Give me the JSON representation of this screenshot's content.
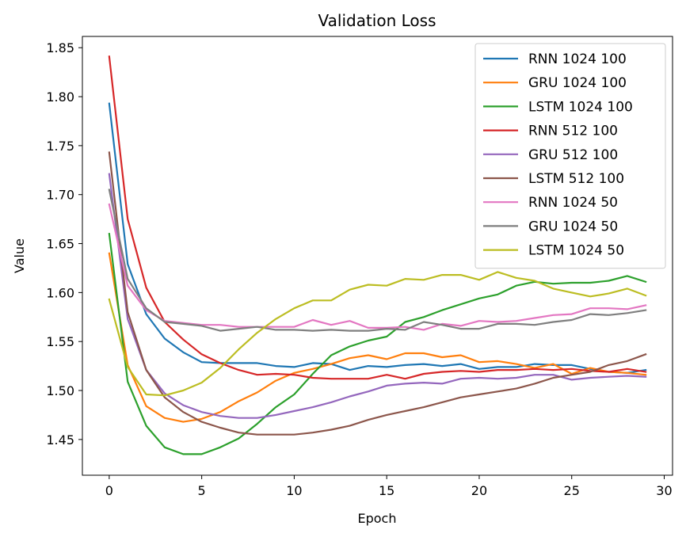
{
  "chart_data": {
    "type": "line",
    "title": "Validation Loss",
    "xlabel": "Epoch",
    "ylabel": "Value",
    "xlim": [
      -1.45,
      30.45
    ],
    "ylim": [
      1.4135,
      1.8615
    ],
    "xticks": [
      0,
      5,
      10,
      15,
      20,
      25,
      30
    ],
    "yticks": [
      1.45,
      1.5,
      1.55,
      1.6,
      1.65,
      1.7,
      1.75,
      1.8,
      1.85
    ],
    "ytick_labels": [
      "1.45",
      "1.50",
      "1.55",
      "1.60",
      "1.65",
      "1.70",
      "1.75",
      "1.80",
      "1.85"
    ],
    "legend_position": "top-right",
    "grid": false,
    "x": [
      0,
      1,
      2,
      3,
      4,
      5,
      6,
      7,
      8,
      9,
      10,
      11,
      12,
      13,
      14,
      15,
      16,
      17,
      18,
      19,
      20,
      21,
      22,
      23,
      24,
      25,
      26,
      27,
      28,
      29
    ],
    "series": [
      {
        "name": "RNN 1024 100",
        "color": "#1f77b4",
        "values": [
          1.793,
          1.629,
          1.578,
          1.553,
          1.539,
          1.529,
          1.528,
          1.528,
          1.528,
          1.525,
          1.524,
          1.528,
          1.527,
          1.521,
          1.525,
          1.524,
          1.526,
          1.527,
          1.525,
          1.527,
          1.522,
          1.524,
          1.524,
          1.527,
          1.526,
          1.526,
          1.522,
          1.519,
          1.518,
          1.521
        ]
      },
      {
        "name": "GRU 1024 100",
        "color": "#ff7f0e",
        "values": [
          1.64,
          1.526,
          1.484,
          1.472,
          1.468,
          1.471,
          1.478,
          1.489,
          1.498,
          1.51,
          1.518,
          1.522,
          1.527,
          1.533,
          1.536,
          1.532,
          1.538,
          1.538,
          1.534,
          1.536,
          1.529,
          1.53,
          1.527,
          1.523,
          1.527,
          1.517,
          1.523,
          1.519,
          1.518,
          1.516
        ]
      },
      {
        "name": "LSTM 1024 100",
        "color": "#2ca02c",
        "values": [
          1.66,
          1.509,
          1.464,
          1.442,
          1.435,
          1.435,
          1.442,
          1.451,
          1.466,
          1.483,
          1.496,
          1.517,
          1.536,
          1.545,
          1.551,
          1.555,
          1.57,
          1.575,
          1.582,
          1.588,
          1.594,
          1.598,
          1.607,
          1.611,
          1.609,
          1.61,
          1.61,
          1.612,
          1.617,
          1.611
        ]
      },
      {
        "name": "RNN 512 100",
        "color": "#d62728",
        "values": [
          1.841,
          1.675,
          1.605,
          1.57,
          1.552,
          1.537,
          1.528,
          1.521,
          1.516,
          1.517,
          1.516,
          1.513,
          1.512,
          1.512,
          1.512,
          1.516,
          1.512,
          1.517,
          1.519,
          1.52,
          1.519,
          1.521,
          1.521,
          1.522,
          1.521,
          1.522,
          1.52,
          1.519,
          1.522,
          1.519
        ]
      },
      {
        "name": "GRU 512 100",
        "color": "#9467bd",
        "values": [
          1.721,
          1.573,
          1.521,
          1.497,
          1.485,
          1.478,
          1.474,
          1.472,
          1.472,
          1.475,
          1.479,
          1.483,
          1.488,
          1.494,
          1.499,
          1.505,
          1.507,
          1.508,
          1.507,
          1.512,
          1.513,
          1.512,
          1.513,
          1.516,
          1.516,
          1.511,
          1.513,
          1.514,
          1.515,
          1.514
        ]
      },
      {
        "name": "LSTM 512 100",
        "color": "#8c564b",
        "values": [
          1.743,
          1.58,
          1.521,
          1.493,
          1.478,
          1.468,
          1.462,
          1.457,
          1.455,
          1.455,
          1.455,
          1.457,
          1.46,
          1.464,
          1.47,
          1.475,
          1.479,
          1.483,
          1.488,
          1.493,
          1.496,
          1.499,
          1.502,
          1.507,
          1.513,
          1.516,
          1.519,
          1.526,
          1.53,
          1.537
        ]
      },
      {
        "name": "RNN 1024 50",
        "color": "#e377c2",
        "values": [
          1.69,
          1.607,
          1.582,
          1.571,
          1.569,
          1.567,
          1.567,
          1.565,
          1.565,
          1.565,
          1.565,
          1.572,
          1.567,
          1.571,
          1.564,
          1.564,
          1.565,
          1.562,
          1.568,
          1.566,
          1.571,
          1.57,
          1.571,
          1.574,
          1.577,
          1.578,
          1.584,
          1.584,
          1.583,
          1.587
        ]
      },
      {
        "name": "GRU 1024 50",
        "color": "#7f7f7f",
        "values": [
          1.705,
          1.614,
          1.584,
          1.57,
          1.568,
          1.566,
          1.561,
          1.563,
          1.565,
          1.562,
          1.562,
          1.561,
          1.562,
          1.561,
          1.561,
          1.563,
          1.562,
          1.57,
          1.567,
          1.563,
          1.563,
          1.568,
          1.568,
          1.567,
          1.57,
          1.572,
          1.578,
          1.577,
          1.579,
          1.582
        ]
      },
      {
        "name": "LSTM 1024 50",
        "color": "#bcbd22",
        "values": [
          1.593,
          1.524,
          1.496,
          1.495,
          1.5,
          1.508,
          1.523,
          1.542,
          1.559,
          1.573,
          1.584,
          1.592,
          1.592,
          1.603,
          1.608,
          1.607,
          1.614,
          1.613,
          1.618,
          1.618,
          1.613,
          1.621,
          1.615,
          1.612,
          1.604,
          1.6,
          1.596,
          1.599,
          1.604,
          1.597
        ]
      }
    ]
  }
}
